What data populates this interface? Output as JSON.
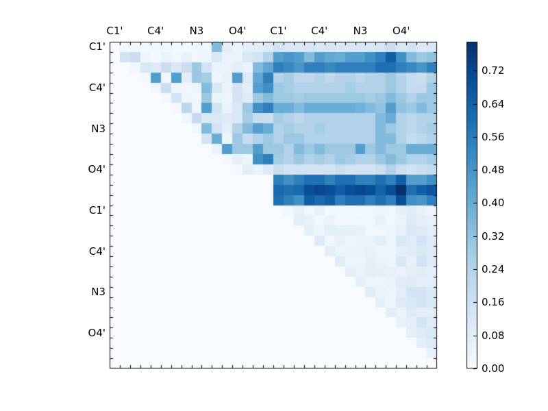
{
  "figure": {
    "background": "#ffffff",
    "plot_background": "#f7fbff"
  },
  "chart_data": {
    "type": "heatmap",
    "title": "",
    "xlabel": "",
    "ylabel": "",
    "n": 32,
    "x_tick_labels": [
      "C1'",
      "C4'",
      "N3",
      "O4'",
      "C1'",
      "C4'",
      "N3",
      "O4'"
    ],
    "x_tick_positions": [
      0,
      4,
      8,
      12,
      16,
      20,
      24,
      28
    ],
    "y_tick_labels": [
      "C1'",
      "C4'",
      "N3",
      "O4'",
      "C1'",
      "C4'",
      "N3",
      "O4'"
    ],
    "y_tick_positions": [
      0,
      4,
      8,
      12,
      16,
      20,
      24,
      28
    ],
    "vmin": 0.0,
    "vmax": 0.79,
    "colormap": "Blues",
    "colormap_anchors": {
      "t": [
        0,
        0.125,
        0.25,
        0.375,
        0.5,
        0.625,
        0.75,
        0.875,
        1
      ],
      "rgb": [
        [
          247,
          251,
          255
        ],
        [
          222,
          235,
          247
        ],
        [
          198,
          219,
          239
        ],
        [
          158,
          202,
          225
        ],
        [
          107,
          174,
          214
        ],
        [
          66,
          146,
          198
        ],
        [
          33,
          113,
          181
        ],
        [
          8,
          81,
          156
        ],
        [
          8,
          48,
          107
        ]
      ]
    },
    "colorbar": {
      "tick_labels": [
        "0.00",
        "0.08",
        "0.16",
        "0.24",
        "0.32",
        "0.40",
        "0.48",
        "0.56",
        "0.64",
        "0.72"
      ],
      "tick_values": [
        0.0,
        0.08,
        0.16,
        0.24,
        0.32,
        0.4,
        0.48,
        0.56,
        0.64,
        0.72
      ]
    },
    "matrix": [
      [
        0,
        0.02,
        0.02,
        0.02,
        0.02,
        0.03,
        0.02,
        0.02,
        0.03,
        0.03,
        0.35,
        0.08,
        0.05,
        0.08,
        0.08,
        0.1,
        0.15,
        0.12,
        0.12,
        0.13,
        0.12,
        0.13,
        0.12,
        0.12,
        0.13,
        0.12,
        0.13,
        0.18,
        0.12,
        0.15,
        0.1,
        0.12
      ],
      [
        0,
        0.15,
        0.18,
        0.04,
        0.02,
        0.05,
        0.03,
        0.06,
        0.03,
        0.04,
        0.12,
        0.05,
        0.05,
        0.12,
        0.15,
        0.25,
        0.45,
        0.48,
        0.45,
        0.35,
        0.45,
        0.42,
        0.4,
        0.45,
        0.45,
        0.5,
        0.55,
        0.65,
        0.5,
        0.35,
        0.3,
        0.32
      ],
      [
        0,
        0,
        0.03,
        0.12,
        0.1,
        0.18,
        0.12,
        0.18,
        0.3,
        0.15,
        0.05,
        0.05,
        0.08,
        0.05,
        0.35,
        0.42,
        0.55,
        0.52,
        0.48,
        0.55,
        0.55,
        0.52,
        0.55,
        0.55,
        0.55,
        0.55,
        0.6,
        0.6,
        0.55,
        0.52,
        0.48,
        0.55
      ],
      [
        0,
        0,
        0,
        0.02,
        0.45,
        0.03,
        0.45,
        0.08,
        0.3,
        0.28,
        0.04,
        0.06,
        0.45,
        0.1,
        0.42,
        0.55,
        0.25,
        0.28,
        0.22,
        0.22,
        0.25,
        0.22,
        0.25,
        0.25,
        0.22,
        0.25,
        0.25,
        0.3,
        0.25,
        0.2,
        0.18,
        0.25
      ],
      [
        0,
        0,
        0,
        0,
        0.03,
        0.18,
        0.04,
        0.03,
        0.04,
        0.35,
        0.12,
        0.05,
        0.15,
        0.08,
        0.45,
        0.5,
        0.3,
        0.28,
        0.25,
        0.25,
        0.25,
        0.25,
        0.25,
        0.28,
        0.25,
        0.25,
        0.25,
        0.3,
        0.25,
        0.2,
        0.2,
        0.3
      ],
      [
        0,
        0,
        0,
        0,
        0,
        0.02,
        0.15,
        0.04,
        0.03,
        0.3,
        0.05,
        0.04,
        0.15,
        0.1,
        0.3,
        0.35,
        0.3,
        0.3,
        0.28,
        0.3,
        0.3,
        0.3,
        0.3,
        0.3,
        0.3,
        0.28,
        0.3,
        0.35,
        0.3,
        0.25,
        0.3,
        0.3
      ],
      [
        0,
        0,
        0,
        0,
        0,
        0,
        0.02,
        0.22,
        0.04,
        0.45,
        0.15,
        0.05,
        0.12,
        0.3,
        0.5,
        0.55,
        0.4,
        0.4,
        0.35,
        0.4,
        0.4,
        0.4,
        0.4,
        0.4,
        0.38,
        0.35,
        0.32,
        0.45,
        0.32,
        0.3,
        0.35,
        0.3
      ],
      [
        0,
        0,
        0,
        0,
        0,
        0,
        0,
        0.03,
        0.2,
        0.12,
        0.12,
        0.1,
        0.12,
        0.28,
        0.2,
        0.18,
        0.28,
        0.25,
        0.22,
        0.25,
        0.25,
        0.25,
        0.25,
        0.25,
        0.25,
        0.25,
        0.35,
        0.4,
        0.25,
        0.22,
        0.25,
        0.25
      ],
      [
        0,
        0,
        0,
        0,
        0,
        0,
        0,
        0,
        0.03,
        0.35,
        0.15,
        0.08,
        0.25,
        0.35,
        0.45,
        0.4,
        0.25,
        0.28,
        0.25,
        0.25,
        0.28,
        0.25,
        0.25,
        0.25,
        0.25,
        0.25,
        0.35,
        0.3,
        0.25,
        0.22,
        0.25,
        0.28
      ],
      [
        0,
        0,
        0,
        0,
        0,
        0,
        0,
        0,
        0,
        0.15,
        0.4,
        0.04,
        0.3,
        0.2,
        0.25,
        0.3,
        0.25,
        0.3,
        0.3,
        0.25,
        0.25,
        0.25,
        0.25,
        0.25,
        0.25,
        0.25,
        0.35,
        0.35,
        0.25,
        0.2,
        0.22,
        0.25
      ],
      [
        0,
        0,
        0,
        0,
        0,
        0,
        0,
        0,
        0,
        0,
        0.05,
        0.45,
        0.3,
        0.3,
        0.45,
        0.3,
        0.3,
        0.25,
        0.35,
        0.3,
        0.35,
        0.3,
        0.3,
        0.3,
        0.45,
        0.3,
        0.35,
        0.3,
        0.3,
        0.4,
        0.4,
        0.4
      ],
      [
        0,
        0,
        0,
        0,
        0,
        0,
        0,
        0,
        0,
        0,
        0,
        0.02,
        0.07,
        0.04,
        0.5,
        0.55,
        0.28,
        0.25,
        0.3,
        0.25,
        0.28,
        0.25,
        0.3,
        0.28,
        0.25,
        0.25,
        0.3,
        0.35,
        0.3,
        0.25,
        0.25,
        0.28
      ],
      [
        0,
        0,
        0,
        0,
        0,
        0,
        0,
        0,
        0,
        0,
        0,
        0,
        0.02,
        0.08,
        0.05,
        0.1,
        0.18,
        0.15,
        0.15,
        0.15,
        0.15,
        0.15,
        0.18,
        0.15,
        0.15,
        0.15,
        0.18,
        0.25,
        0.18,
        0.15,
        0.18,
        0.2
      ],
      [
        0,
        0,
        0,
        0,
        0,
        0,
        0,
        0,
        0,
        0,
        0,
        0,
        0,
        0,
        0,
        0,
        0.55,
        0.5,
        0.55,
        0.6,
        0.6,
        0.55,
        0.6,
        0.6,
        0.55,
        0.55,
        0.6,
        0.55,
        0.65,
        0.45,
        0.45,
        0.5
      ],
      [
        0,
        0,
        0,
        0,
        0,
        0,
        0,
        0,
        0,
        0,
        0,
        0,
        0,
        0,
        0,
        0,
        0.62,
        0.6,
        0.62,
        0.7,
        0.72,
        0.7,
        0.65,
        0.7,
        0.72,
        0.7,
        0.64,
        0.7,
        0.79,
        0.6,
        0.65,
        0.68
      ],
      [
        0,
        0,
        0,
        0,
        0,
        0,
        0,
        0,
        0,
        0,
        0,
        0,
        0,
        0,
        0,
        0,
        0.6,
        0.55,
        0.5,
        0.65,
        0.62,
        0.65,
        0.55,
        0.6,
        0.6,
        0.55,
        0.6,
        0.55,
        0.7,
        0.5,
        0.48,
        0.55
      ],
      [
        0,
        0,
        0,
        0,
        0,
        0,
        0,
        0,
        0,
        0,
        0,
        0,
        0,
        0,
        0,
        0,
        0,
        0.03,
        0.06,
        0.03,
        0.06,
        0.02,
        0.02,
        0.03,
        0.02,
        0.03,
        0.04,
        0.03,
        0.07,
        0.09,
        0.06,
        0.04
      ],
      [
        0,
        0,
        0,
        0,
        0,
        0,
        0,
        0,
        0,
        0,
        0,
        0,
        0,
        0,
        0,
        0,
        0,
        0,
        0.08,
        0.06,
        0.03,
        0.05,
        0.02,
        0.03,
        0.03,
        0.03,
        0.06,
        0.03,
        0.05,
        0.1,
        0.08,
        0.06
      ],
      [
        0,
        0,
        0,
        0,
        0,
        0,
        0,
        0,
        0,
        0,
        0,
        0,
        0,
        0,
        0,
        0,
        0,
        0,
        0,
        0.07,
        0.04,
        0.08,
        0.07,
        0.07,
        0.06,
        0.03,
        0.03,
        0.04,
        0.06,
        0.12,
        0.1,
        0.08
      ],
      [
        0,
        0,
        0,
        0,
        0,
        0,
        0,
        0,
        0,
        0,
        0,
        0,
        0,
        0,
        0,
        0,
        0,
        0,
        0,
        0,
        0.1,
        0.03,
        0.06,
        0.04,
        0.05,
        0.05,
        0.08,
        0.04,
        0.12,
        0.09,
        0.14,
        0.1
      ],
      [
        0,
        0,
        0,
        0,
        0,
        0,
        0,
        0,
        0,
        0,
        0,
        0,
        0,
        0,
        0,
        0,
        0,
        0,
        0,
        0,
        0,
        0.08,
        0.04,
        0.05,
        0.05,
        0.06,
        0.04,
        0.04,
        0.07,
        0.09,
        0.12,
        0.1
      ],
      [
        0,
        0,
        0,
        0,
        0,
        0,
        0,
        0,
        0,
        0,
        0,
        0,
        0,
        0,
        0,
        0,
        0,
        0,
        0,
        0,
        0,
        0,
        0.09,
        0.04,
        0.04,
        0.07,
        0.05,
        0.04,
        0.12,
        0.06,
        0.15,
        0.1
      ],
      [
        0,
        0,
        0,
        0,
        0,
        0,
        0,
        0,
        0,
        0,
        0,
        0,
        0,
        0,
        0,
        0,
        0,
        0,
        0,
        0,
        0,
        0,
        0,
        0.08,
        0.05,
        0.08,
        0.07,
        0.06,
        0.05,
        0.08,
        0.09,
        0.07
      ],
      [
        0,
        0,
        0,
        0,
        0,
        0,
        0,
        0,
        0,
        0,
        0,
        0,
        0,
        0,
        0,
        0,
        0,
        0,
        0,
        0,
        0,
        0,
        0,
        0,
        0.07,
        0.04,
        0.04,
        0.05,
        0.09,
        0.1,
        0.08,
        0.08
      ],
      [
        0,
        0,
        0,
        0,
        0,
        0,
        0,
        0,
        0,
        0,
        0,
        0,
        0,
        0,
        0,
        0,
        0,
        0,
        0,
        0,
        0,
        0,
        0,
        0,
        0,
        0.09,
        0.05,
        0.04,
        0.08,
        0.14,
        0.14,
        0.12
      ],
      [
        0,
        0,
        0,
        0,
        0,
        0,
        0,
        0,
        0,
        0,
        0,
        0,
        0,
        0,
        0,
        0,
        0,
        0,
        0,
        0,
        0,
        0,
        0,
        0,
        0,
        0,
        0.07,
        0.04,
        0.1,
        0.12,
        0.14,
        0.12
      ],
      [
        0,
        0,
        0,
        0,
        0,
        0,
        0,
        0,
        0,
        0,
        0,
        0,
        0,
        0,
        0,
        0,
        0,
        0,
        0,
        0,
        0,
        0,
        0,
        0,
        0,
        0,
        0,
        0.08,
        0.05,
        0.1,
        0.08,
        0.08
      ],
      [
        0,
        0,
        0,
        0,
        0,
        0,
        0,
        0,
        0,
        0,
        0,
        0,
        0,
        0,
        0,
        0,
        0,
        0,
        0,
        0,
        0,
        0,
        0,
        0,
        0,
        0,
        0,
        0,
        0.06,
        0.08,
        0.15,
        0.1
      ],
      [
        0,
        0,
        0,
        0,
        0,
        0,
        0,
        0,
        0,
        0,
        0,
        0,
        0,
        0,
        0,
        0,
        0,
        0,
        0,
        0,
        0,
        0,
        0,
        0,
        0,
        0,
        0,
        0,
        0,
        0.07,
        0.1,
        0.12
      ],
      [
        0,
        0,
        0,
        0,
        0,
        0,
        0,
        0,
        0,
        0,
        0,
        0,
        0,
        0,
        0,
        0,
        0,
        0,
        0,
        0,
        0,
        0,
        0,
        0,
        0,
        0,
        0,
        0,
        0,
        0,
        0.08,
        0.1
      ],
      [
        0,
        0,
        0,
        0,
        0,
        0,
        0,
        0,
        0,
        0,
        0,
        0,
        0,
        0,
        0,
        0,
        0,
        0,
        0,
        0,
        0,
        0,
        0,
        0,
        0,
        0,
        0,
        0,
        0,
        0,
        0,
        0.06
      ],
      [
        0,
        0,
        0,
        0,
        0,
        0,
        0,
        0,
        0,
        0,
        0,
        0,
        0,
        0,
        0,
        0,
        0,
        0,
        0,
        0,
        0,
        0,
        0,
        0,
        0,
        0,
        0,
        0,
        0,
        0,
        0,
        0
      ]
    ]
  }
}
